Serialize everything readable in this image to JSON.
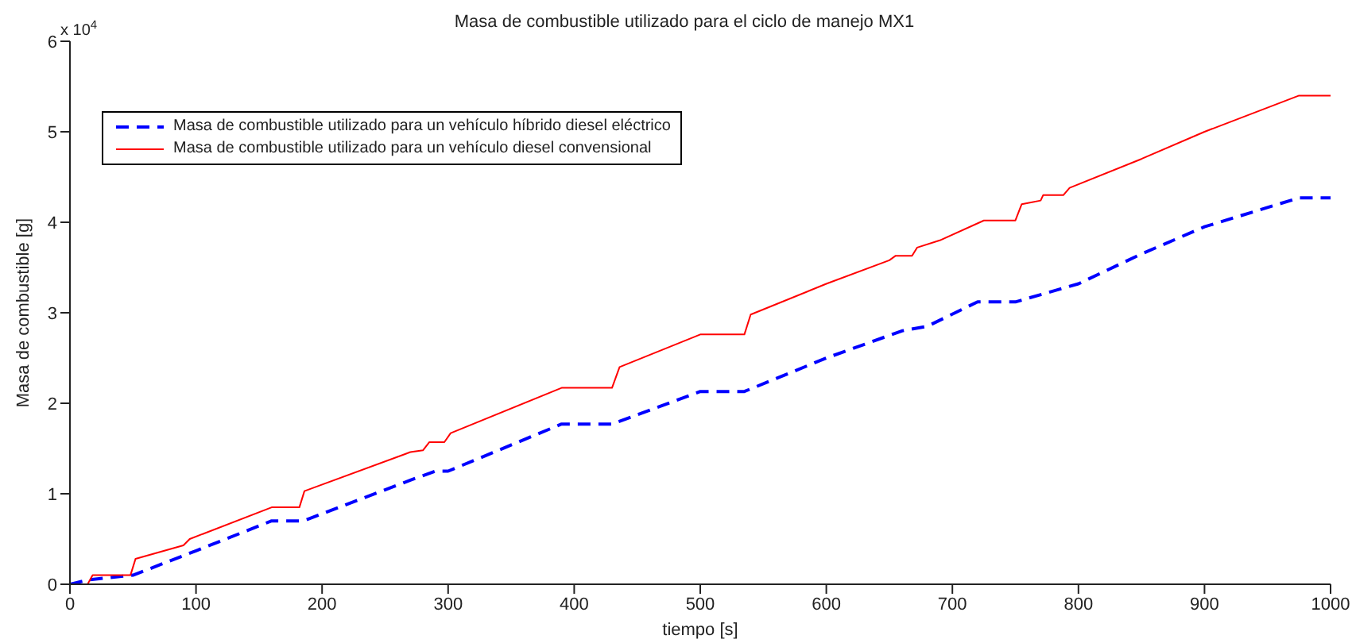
{
  "chart_data": {
    "type": "line",
    "title": "Masa de combustible utilizado para el ciclo de manejo MX1",
    "xlabel": "tiempo [s]",
    "ylabel": "Masa de combustible [g]",
    "annotations": [
      "x 10$^{4}$"
    ],
    "xlim": [
      0,
      1000
    ],
    "xticks": [
      0,
      100,
      200,
      300,
      400,
      500,
      600,
      700,
      800,
      900,
      1000
    ],
    "ylim": [
      0,
      6
    ],
    "yticks": [
      0,
      1,
      2,
      3,
      4,
      5,
      6
    ],
    "grid": false,
    "legend": "top left",
    "marker": "none",
    "series": [
      {
        "name": "Masa de combustible utilizado para un vehículo híbrido diesel eléctrico",
        "color": "#0000ff",
        "line_style": "dashed",
        "x": [
          0,
          15,
          50,
          100,
          160,
          185,
          270,
          290,
          300,
          390,
          430,
          500,
          535,
          600,
          660,
          680,
          720,
          750,
          800,
          850,
          900,
          975,
          1000
        ],
        "values": [
          0,
          0.05,
          0.1,
          0.37,
          0.7,
          0.7,
          1.15,
          1.25,
          1.25,
          1.77,
          1.77,
          2.13,
          2.13,
          2.5,
          2.8,
          2.85,
          3.12,
          3.12,
          3.32,
          3.65,
          3.95,
          4.27,
          4.27
        ]
      },
      {
        "name": "Masa de combustible utilizado para un vehículo diesel convensional",
        "color": "#ff0000",
        "line_style": "solid",
        "x": [
          0,
          14,
          18,
          48,
          52,
          90,
          95,
          160,
          182,
          186,
          270,
          280,
          285,
          297,
          302,
          390,
          430,
          436,
          500,
          535,
          540,
          600,
          650,
          655,
          668,
          672,
          690,
          725,
          750,
          755,
          770,
          772,
          788,
          793,
          850,
          900,
          975,
          1000
        ],
        "values": [
          0,
          0,
          0.1,
          0.1,
          0.28,
          0.43,
          0.5,
          0.85,
          0.85,
          1.03,
          1.46,
          1.48,
          1.57,
          1.57,
          1.67,
          2.17,
          2.17,
          2.4,
          2.76,
          2.76,
          2.98,
          3.32,
          3.58,
          3.63,
          3.63,
          3.72,
          3.8,
          4.02,
          4.02,
          4.2,
          4.24,
          4.3,
          4.3,
          4.38,
          4.7,
          5.0,
          5.4,
          5.4
        ]
      }
    ]
  }
}
